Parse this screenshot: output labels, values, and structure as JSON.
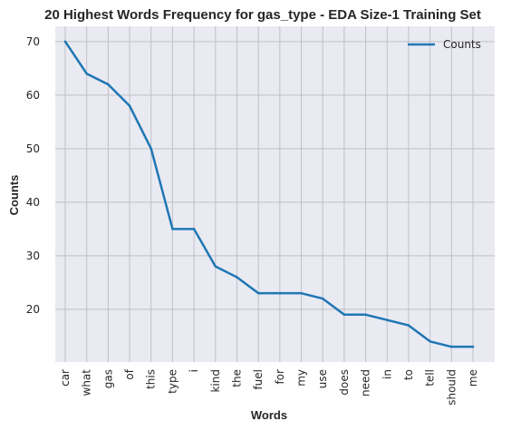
{
  "chart_data": {
    "type": "line",
    "title": "20 Highest Words Frequency for gas_type - EDA Size-1 Training Set",
    "xlabel": "Words",
    "ylabel": "Counts",
    "categories": [
      "car",
      "what",
      "gas",
      "of",
      "this",
      "type",
      "i",
      "kind",
      "the",
      "fuel",
      "for",
      "my",
      "use",
      "does",
      "need",
      "in",
      "to",
      "tell",
      "should",
      "me"
    ],
    "series": [
      {
        "name": "Counts",
        "color": "#1f77b4",
        "values": [
          70,
          64,
          62,
          58,
          50,
          35,
          35,
          28,
          26,
          23,
          23,
          23,
          22,
          19,
          19,
          18,
          17,
          14,
          13,
          13
        ]
      }
    ],
    "ylim": [
      10.15,
      72.85
    ],
    "yticks": [
      20,
      30,
      40,
      50,
      60,
      70
    ],
    "grid": true,
    "legend": "top-right",
    "background": "#eaeaf2"
  }
}
